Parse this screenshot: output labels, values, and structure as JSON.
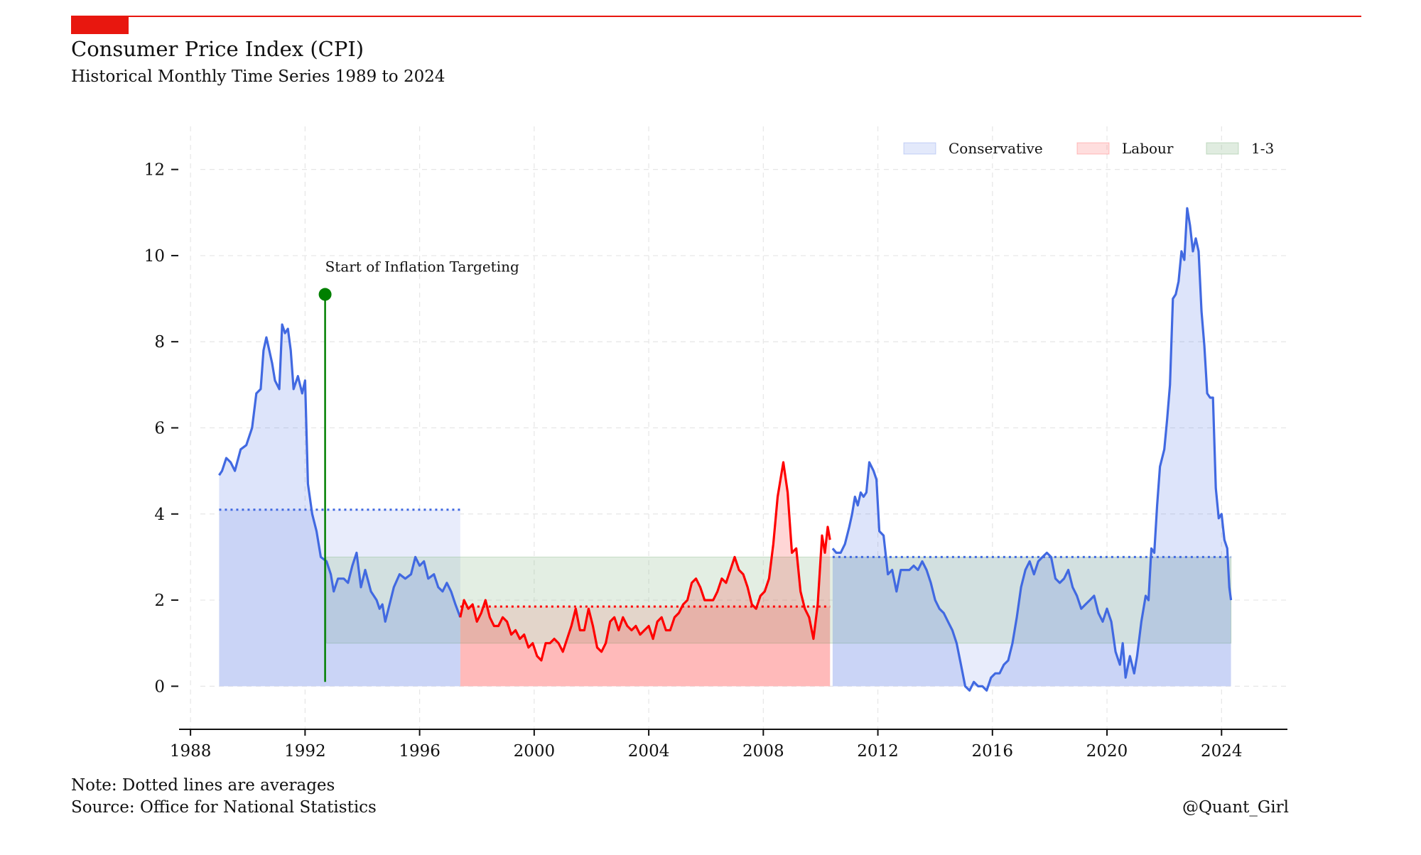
{
  "header": {
    "title": "Consumer Price Index (CPI)",
    "subtitle": "Historical Monthly Time Series 1989 to 2024"
  },
  "footer": {
    "note": "Note: Dotted lines are averages",
    "source": "Source: Office for National Statistics",
    "credit": "@Quant_Girl"
  },
  "colors": {
    "accent": "#e8170f",
    "conservative": "#4169e1",
    "labour": "#ff0000",
    "target_band": "#8fbc8f",
    "marker": "#008000"
  },
  "chart_data": {
    "type": "line",
    "title": "Consumer Price Index (CPI)",
    "subtitle": "Historical Monthly Time Series 1989 to 2024",
    "xlabel": "",
    "ylabel": "",
    "xlim": [
      1987.6,
      2026.3
    ],
    "ylim": [
      -1,
      13
    ],
    "x_ticks": [
      1988,
      1992,
      1996,
      2000,
      2004,
      2008,
      2012,
      2016,
      2020,
      2024
    ],
    "y_ticks": [
      0,
      2,
      4,
      6,
      8,
      10,
      12
    ],
    "grid": true,
    "legend_position": "top-right",
    "legend": [
      {
        "label": "Conservative",
        "color": "#4169e1"
      },
      {
        "label": "Labour",
        "color": "#ff0000"
      },
      {
        "label": "1-3",
        "color": "#8fbc8f"
      }
    ],
    "target_band": {
      "label": "1-3",
      "y_range": [
        1,
        3
      ],
      "x_range": [
        1992.75,
        2024.33
      ]
    },
    "annotation": {
      "text": "Start of Inflation Targeting",
      "x": 1992.7,
      "y": 9.1
    },
    "series": [
      {
        "name": "Conservative",
        "color": "#4169e1",
        "average": 4.1,
        "x_range": [
          1989.0,
          1997.42
        ],
        "points": [
          [
            1989.0,
            4.9
          ],
          [
            1989.1,
            5.0
          ],
          [
            1989.25,
            5.3
          ],
          [
            1989.4,
            5.2
          ],
          [
            1989.55,
            5.0
          ],
          [
            1989.75,
            5.5
          ],
          [
            1989.95,
            5.6
          ],
          [
            1990.15,
            6.0
          ],
          [
            1990.3,
            6.8
          ],
          [
            1990.45,
            6.9
          ],
          [
            1990.55,
            7.8
          ],
          [
            1990.65,
            8.1
          ],
          [
            1990.75,
            7.8
          ],
          [
            1990.85,
            7.5
          ],
          [
            1990.95,
            7.1
          ],
          [
            1991.1,
            6.9
          ],
          [
            1991.2,
            8.4
          ],
          [
            1991.3,
            8.2
          ],
          [
            1991.4,
            8.3
          ],
          [
            1991.5,
            7.8
          ],
          [
            1991.6,
            6.9
          ],
          [
            1991.75,
            7.2
          ],
          [
            1991.9,
            6.8
          ],
          [
            1992.0,
            7.1
          ],
          [
            1992.1,
            4.7
          ],
          [
            1992.25,
            4.0
          ],
          [
            1992.4,
            3.6
          ],
          [
            1992.55,
            3.0
          ],
          [
            1992.75,
            2.9
          ],
          [
            1992.9,
            2.6
          ],
          [
            1993.0,
            2.2
          ],
          [
            1993.15,
            2.5
          ],
          [
            1993.35,
            2.5
          ],
          [
            1993.5,
            2.4
          ],
          [
            1993.65,
            2.8
          ],
          [
            1993.8,
            3.1
          ],
          [
            1993.95,
            2.3
          ],
          [
            1994.1,
            2.7
          ],
          [
            1994.3,
            2.2
          ],
          [
            1994.5,
            2.0
          ],
          [
            1994.6,
            1.8
          ],
          [
            1994.7,
            1.9
          ],
          [
            1994.8,
            1.5
          ],
          [
            1994.95,
            1.9
          ],
          [
            1995.1,
            2.3
          ],
          [
            1995.3,
            2.6
          ],
          [
            1995.5,
            2.5
          ],
          [
            1995.7,
            2.6
          ],
          [
            1995.85,
            3.0
          ],
          [
            1996.0,
            2.8
          ],
          [
            1996.15,
            2.9
          ],
          [
            1996.3,
            2.5
          ],
          [
            1996.5,
            2.6
          ],
          [
            1996.65,
            2.3
          ],
          [
            1996.8,
            2.2
          ],
          [
            1996.95,
            2.4
          ],
          [
            1997.1,
            2.2
          ],
          [
            1997.25,
            1.9
          ],
          [
            1997.42,
            1.6
          ]
        ]
      },
      {
        "name": "Labour",
        "color": "#ff0000",
        "average": 1.85,
        "x_range": [
          1997.42,
          2010.33
        ],
        "points": [
          [
            1997.42,
            1.6
          ],
          [
            1997.55,
            2.0
          ],
          [
            1997.7,
            1.8
          ],
          [
            1997.85,
            1.9
          ],
          [
            1998.0,
            1.5
          ],
          [
            1998.15,
            1.7
          ],
          [
            1998.3,
            2.0
          ],
          [
            1998.45,
            1.6
          ],
          [
            1998.6,
            1.4
          ],
          [
            1998.75,
            1.4
          ],
          [
            1998.9,
            1.6
          ],
          [
            1999.05,
            1.5
          ],
          [
            1999.2,
            1.2
          ],
          [
            1999.35,
            1.3
          ],
          [
            1999.5,
            1.1
          ],
          [
            1999.65,
            1.2
          ],
          [
            1999.8,
            0.9
          ],
          [
            1999.95,
            1.0
          ],
          [
            2000.1,
            0.7
          ],
          [
            2000.25,
            0.6
          ],
          [
            2000.4,
            1.0
          ],
          [
            2000.55,
            1.0
          ],
          [
            2000.7,
            1.1
          ],
          [
            2000.85,
            1.0
          ],
          [
            2001.0,
            0.8
          ],
          [
            2001.15,
            1.1
          ],
          [
            2001.3,
            1.4
          ],
          [
            2001.45,
            1.8
          ],
          [
            2001.6,
            1.3
          ],
          [
            2001.75,
            1.3
          ],
          [
            2001.9,
            1.8
          ],
          [
            2002.05,
            1.4
          ],
          [
            2002.2,
            0.9
          ],
          [
            2002.35,
            0.8
          ],
          [
            2002.5,
            1.0
          ],
          [
            2002.65,
            1.5
          ],
          [
            2002.8,
            1.6
          ],
          [
            2002.95,
            1.3
          ],
          [
            2003.1,
            1.6
          ],
          [
            2003.25,
            1.4
          ],
          [
            2003.4,
            1.3
          ],
          [
            2003.55,
            1.4
          ],
          [
            2003.7,
            1.2
          ],
          [
            2003.85,
            1.3
          ],
          [
            2004.0,
            1.4
          ],
          [
            2004.15,
            1.1
          ],
          [
            2004.3,
            1.5
          ],
          [
            2004.45,
            1.6
          ],
          [
            2004.6,
            1.3
          ],
          [
            2004.75,
            1.3
          ],
          [
            2004.9,
            1.6
          ],
          [
            2005.05,
            1.7
          ],
          [
            2005.2,
            1.9
          ],
          [
            2005.35,
            2.0
          ],
          [
            2005.5,
            2.4
          ],
          [
            2005.65,
            2.5
          ],
          [
            2005.8,
            2.3
          ],
          [
            2005.95,
            2.0
          ],
          [
            2006.1,
            2.0
          ],
          [
            2006.25,
            2.0
          ],
          [
            2006.4,
            2.2
          ],
          [
            2006.55,
            2.5
          ],
          [
            2006.7,
            2.4
          ],
          [
            2006.85,
            2.7
          ],
          [
            2007.0,
            3.0
          ],
          [
            2007.15,
            2.7
          ],
          [
            2007.3,
            2.6
          ],
          [
            2007.45,
            2.3
          ],
          [
            2007.6,
            1.9
          ],
          [
            2007.75,
            1.8
          ],
          [
            2007.9,
            2.1
          ],
          [
            2008.05,
            2.2
          ],
          [
            2008.2,
            2.5
          ],
          [
            2008.35,
            3.3
          ],
          [
            2008.5,
            4.4
          ],
          [
            2008.7,
            5.2
          ],
          [
            2008.85,
            4.5
          ],
          [
            2009.0,
            3.1
          ],
          [
            2009.15,
            3.2
          ],
          [
            2009.3,
            2.2
          ],
          [
            2009.45,
            1.8
          ],
          [
            2009.6,
            1.6
          ],
          [
            2009.75,
            1.1
          ],
          [
            2009.9,
            1.9
          ],
          [
            2010.05,
            3.5
          ],
          [
            2010.15,
            3.1
          ],
          [
            2010.25,
            3.7
          ],
          [
            2010.33,
            3.4
          ]
        ]
      },
      {
        "name": "Conservative",
        "color": "#4169e1",
        "average": 3.0,
        "x_range": [
          2010.42,
          2024.33
        ],
        "points": [
          [
            2010.42,
            3.2
          ],
          [
            2010.55,
            3.1
          ],
          [
            2010.7,
            3.1
          ],
          [
            2010.85,
            3.3
          ],
          [
            2011.0,
            3.7
          ],
          [
            2011.1,
            4.0
          ],
          [
            2011.2,
            4.4
          ],
          [
            2011.3,
            4.2
          ],
          [
            2011.4,
            4.5
          ],
          [
            2011.5,
            4.4
          ],
          [
            2011.6,
            4.5
          ],
          [
            2011.7,
            5.2
          ],
          [
            2011.85,
            5.0
          ],
          [
            2011.95,
            4.8
          ],
          [
            2012.05,
            3.6
          ],
          [
            2012.2,
            3.5
          ],
          [
            2012.35,
            2.6
          ],
          [
            2012.5,
            2.7
          ],
          [
            2012.65,
            2.2
          ],
          [
            2012.8,
            2.7
          ],
          [
            2012.95,
            2.7
          ],
          [
            2013.1,
            2.7
          ],
          [
            2013.25,
            2.8
          ],
          [
            2013.4,
            2.7
          ],
          [
            2013.55,
            2.9
          ],
          [
            2013.7,
            2.7
          ],
          [
            2013.85,
            2.4
          ],
          [
            2014.0,
            2.0
          ],
          [
            2014.15,
            1.8
          ],
          [
            2014.3,
            1.7
          ],
          [
            2014.45,
            1.5
          ],
          [
            2014.6,
            1.3
          ],
          [
            2014.75,
            1.0
          ],
          [
            2014.9,
            0.5
          ],
          [
            2015.05,
            0.0
          ],
          [
            2015.2,
            -0.1
          ],
          [
            2015.35,
            0.1
          ],
          [
            2015.5,
            0.0
          ],
          [
            2015.65,
            0.0
          ],
          [
            2015.8,
            -0.1
          ],
          [
            2015.95,
            0.2
          ],
          [
            2016.1,
            0.3
          ],
          [
            2016.25,
            0.3
          ],
          [
            2016.4,
            0.5
          ],
          [
            2016.55,
            0.6
          ],
          [
            2016.7,
            1.0
          ],
          [
            2016.85,
            1.6
          ],
          [
            2017.0,
            2.3
          ],
          [
            2017.15,
            2.7
          ],
          [
            2017.3,
            2.9
          ],
          [
            2017.45,
            2.6
          ],
          [
            2017.6,
            2.9
          ],
          [
            2017.75,
            3.0
          ],
          [
            2017.9,
            3.1
          ],
          [
            2018.05,
            3.0
          ],
          [
            2018.2,
            2.5
          ],
          [
            2018.35,
            2.4
          ],
          [
            2018.5,
            2.5
          ],
          [
            2018.65,
            2.7
          ],
          [
            2018.8,
            2.3
          ],
          [
            2018.95,
            2.1
          ],
          [
            2019.1,
            1.8
          ],
          [
            2019.25,
            1.9
          ],
          [
            2019.4,
            2.0
          ],
          [
            2019.55,
            2.1
          ],
          [
            2019.7,
            1.7
          ],
          [
            2019.85,
            1.5
          ],
          [
            2020.0,
            1.8
          ],
          [
            2020.15,
            1.5
          ],
          [
            2020.3,
            0.8
          ],
          [
            2020.45,
            0.5
          ],
          [
            2020.55,
            1.0
          ],
          [
            2020.65,
            0.2
          ],
          [
            2020.8,
            0.7
          ],
          [
            2020.95,
            0.3
          ],
          [
            2021.05,
            0.7
          ],
          [
            2021.2,
            1.5
          ],
          [
            2021.35,
            2.1
          ],
          [
            2021.45,
            2.0
          ],
          [
            2021.55,
            3.2
          ],
          [
            2021.65,
            3.1
          ],
          [
            2021.75,
            4.2
          ],
          [
            2021.85,
            5.1
          ],
          [
            2022.0,
            5.5
          ],
          [
            2022.1,
            6.2
          ],
          [
            2022.2,
            7.0
          ],
          [
            2022.3,
            9.0
          ],
          [
            2022.4,
            9.1
          ],
          [
            2022.5,
            9.4
          ],
          [
            2022.6,
            10.1
          ],
          [
            2022.7,
            9.9
          ],
          [
            2022.8,
            11.1
          ],
          [
            2022.9,
            10.7
          ],
          [
            2023.0,
            10.1
          ],
          [
            2023.1,
            10.4
          ],
          [
            2023.2,
            10.1
          ],
          [
            2023.3,
            8.7
          ],
          [
            2023.4,
            7.9
          ],
          [
            2023.5,
            6.8
          ],
          [
            2023.6,
            6.7
          ],
          [
            2023.7,
            6.7
          ],
          [
            2023.8,
            4.6
          ],
          [
            2023.9,
            3.9
          ],
          [
            2024.0,
            4.0
          ],
          [
            2024.1,
            3.4
          ],
          [
            2024.2,
            3.2
          ],
          [
            2024.27,
            2.3
          ],
          [
            2024.33,
            2.0
          ]
        ]
      }
    ]
  }
}
